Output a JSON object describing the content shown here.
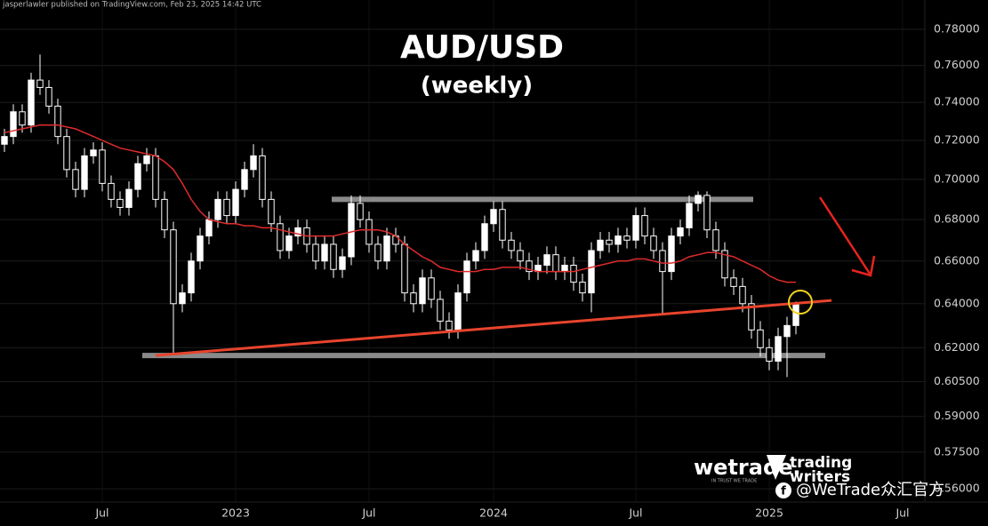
{
  "chart_data": {
    "type": "candlestick",
    "header": "jasperlawler published on TradingView.com, Feb 23, 2025 14:42 UTC",
    "title": "AUD/USD",
    "subtitle": "(weekly)",
    "watermarks": [
      "wetrade.",
      "IN TRUST WE TRADE",
      "trading",
      "writers",
      "@WeTrade众汇官方"
    ],
    "log_scale": true,
    "grid": true,
    "up_color": "#ffffff",
    "down_color": "#000000",
    "wick_color": "#ffffff",
    "ylim": [
      0.5547,
      0.7967
    ],
    "yticks": [
      {
        "value": 0.78,
        "label": "0.78000"
      },
      {
        "value": 0.76,
        "label": "0.76000"
      },
      {
        "value": 0.74,
        "label": "0.74000"
      },
      {
        "value": 0.72,
        "label": "0.72000"
      },
      {
        "value": 0.7,
        "label": "0.70000"
      },
      {
        "value": 0.68,
        "label": "0.68000"
      },
      {
        "value": 0.66,
        "label": "0.66000"
      },
      {
        "value": 0.64,
        "label": "0.64000"
      },
      {
        "value": 0.62,
        "label": "0.62000"
      },
      {
        "value": 0.605,
        "label": "0.60500"
      },
      {
        "value": 0.59,
        "label": "0.59000"
      },
      {
        "value": 0.575,
        "label": "0.57500"
      },
      {
        "value": 0.56,
        "label": "0.56000"
      }
    ],
    "categories": [
      null,
      null,
      null,
      null,
      null,
      null,
      null,
      null,
      null,
      null,
      null,
      "Jul",
      null,
      null,
      null,
      null,
      null,
      null,
      null,
      null,
      null,
      null,
      null,
      null,
      null,
      null,
      "2023",
      null,
      null,
      null,
      null,
      null,
      null,
      null,
      null,
      null,
      null,
      null,
      null,
      null,
      null,
      "Jul",
      null,
      null,
      null,
      null,
      null,
      null,
      null,
      null,
      null,
      null,
      null,
      null,
      null,
      "2024",
      null,
      null,
      null,
      null,
      null,
      null,
      null,
      null,
      null,
      null,
      null,
      null,
      null,
      null,
      null,
      "Jul",
      null,
      null,
      null,
      null,
      null,
      null,
      null,
      null,
      null,
      null,
      null,
      null,
      null,
      null,
      "2025",
      null,
      null,
      null,
      null,
      null,
      null,
      null,
      null,
      null,
      null,
      null,
      null,
      null,
      null,
      "Jul",
      null,
      null
    ],
    "open": [
      0.718,
      0.722,
      0.735,
      0.728,
      0.752,
      0.748,
      0.738,
      0.722,
      0.705,
      0.695,
      0.712,
      0.715,
      0.698,
      0.69,
      0.686,
      0.695,
      0.708,
      0.712,
      0.69,
      0.675,
      0.64,
      0.645,
      0.66,
      0.672,
      0.68,
      0.69,
      0.682,
      0.695,
      0.705,
      0.712,
      0.69,
      0.678,
      0.665,
      0.672,
      0.676,
      0.668,
      0.66,
      0.668,
      0.656,
      0.662,
      0.688,
      0.68,
      0.668,
      0.66,
      0.672,
      0.668,
      0.645,
      0.64,
      0.652,
      0.642,
      0.632,
      0.628,
      0.645,
      0.66,
      0.665,
      0.678,
      0.685,
      0.67,
      0.665,
      0.66,
      0.655,
      0.658,
      0.663,
      0.655,
      0.658,
      0.65,
      0.645,
      0.665,
      0.67,
      0.668,
      0.672,
      0.67,
      0.682,
      0.672,
      0.665,
      0.655,
      0.672,
      0.676,
      0.688,
      0.692,
      0.675,
      0.665,
      0.652,
      0.648,
      0.64,
      0.628,
      0.62,
      0.614,
      0.625,
      0.63,
      null,
      null,
      null,
      null,
      null,
      null,
      null,
      null,
      null,
      null,
      null,
      null,
      null,
      null
    ],
    "high": [
      0.726,
      0.739,
      0.739,
      0.756,
      0.766,
      0.752,
      0.742,
      0.726,
      0.709,
      0.716,
      0.719,
      0.719,
      0.702,
      0.694,
      0.699,
      0.712,
      0.716,
      0.716,
      0.694,
      0.679,
      0.649,
      0.664,
      0.676,
      0.684,
      0.694,
      0.694,
      0.699,
      0.709,
      0.718,
      0.716,
      0.694,
      0.682,
      0.676,
      0.68,
      0.68,
      0.672,
      0.672,
      0.672,
      0.666,
      0.692,
      0.692,
      0.684,
      0.672,
      0.676,
      0.676,
      0.672,
      0.649,
      0.656,
      0.656,
      0.646,
      0.636,
      0.649,
      0.664,
      0.669,
      0.682,
      0.689,
      0.689,
      0.674,
      0.669,
      0.664,
      0.662,
      0.667,
      0.667,
      0.662,
      0.662,
      0.654,
      0.669,
      0.674,
      0.674,
      0.676,
      0.676,
      0.686,
      0.686,
      0.676,
      0.669,
      0.676,
      0.68,
      0.692,
      0.694,
      0.694,
      0.679,
      0.669,
      0.656,
      0.652,
      0.644,
      0.632,
      0.624,
      0.629,
      0.634,
      0.641,
      null,
      null,
      null,
      null,
      null,
      null,
      null,
      null,
      null,
      null,
      null,
      null,
      null,
      null
    ],
    "low": [
      0.714,
      0.718,
      0.724,
      0.724,
      0.744,
      0.734,
      0.718,
      0.701,
      0.691,
      0.691,
      0.708,
      0.694,
      0.686,
      0.682,
      0.682,
      0.691,
      0.704,
      0.686,
      0.671,
      0.617,
      0.636,
      0.641,
      0.656,
      0.668,
      0.676,
      0.678,
      0.678,
      0.691,
      0.701,
      0.686,
      0.674,
      0.661,
      0.661,
      0.668,
      0.664,
      0.656,
      0.656,
      0.652,
      0.652,
      0.658,
      0.676,
      0.664,
      0.656,
      0.656,
      0.664,
      0.641,
      0.636,
      0.636,
      0.638,
      0.628,
      0.624,
      0.624,
      0.641,
      0.656,
      0.661,
      0.674,
      0.666,
      0.661,
      0.656,
      0.651,
      0.651,
      0.654,
      0.651,
      0.651,
      0.646,
      0.641,
      0.636,
      0.661,
      0.664,
      0.664,
      0.666,
      0.666,
      0.668,
      0.661,
      0.635,
      0.651,
      0.668,
      0.672,
      0.684,
      0.671,
      0.661,
      0.648,
      0.644,
      0.636,
      0.624,
      0.616,
      0.61,
      0.61,
      0.607,
      0.626,
      null,
      null,
      null,
      null,
      null,
      null,
      null,
      null,
      null,
      null,
      null,
      null,
      null,
      null
    ],
    "close": [
      0.722,
      0.735,
      0.728,
      0.752,
      0.748,
      0.738,
      0.722,
      0.705,
      0.695,
      0.712,
      0.715,
      0.698,
      0.69,
      0.686,
      0.695,
      0.708,
      0.712,
      0.69,
      0.675,
      0.64,
      0.645,
      0.66,
      0.672,
      0.68,
      0.69,
      0.682,
      0.695,
      0.705,
      0.712,
      0.69,
      0.678,
      0.665,
      0.672,
      0.676,
      0.668,
      0.66,
      0.668,
      0.656,
      0.662,
      0.688,
      0.68,
      0.668,
      0.66,
      0.672,
      0.668,
      0.645,
      0.64,
      0.652,
      0.642,
      0.632,
      0.628,
      0.645,
      0.66,
      0.665,
      0.678,
      0.685,
      0.67,
      0.665,
      0.66,
      0.655,
      0.658,
      0.663,
      0.655,
      0.658,
      0.65,
      0.645,
      0.665,
      0.67,
      0.668,
      0.672,
      0.67,
      0.682,
      0.672,
      0.665,
      0.655,
      0.672,
      0.676,
      0.688,
      0.692,
      0.675,
      0.665,
      0.652,
      0.648,
      0.64,
      0.628,
      0.62,
      0.614,
      0.625,
      0.63,
      0.64,
      null,
      null,
      null,
      null,
      null,
      null,
      null,
      null,
      null,
      null,
      null,
      null,
      null,
      null
    ],
    "ma": {
      "color": "#e02b2b",
      "values": [
        0.724,
        0.725,
        0.726,
        0.727,
        0.728,
        0.728,
        0.728,
        0.727,
        0.726,
        0.724,
        0.722,
        0.72,
        0.718,
        0.716,
        0.715,
        0.714,
        0.713,
        0.712,
        0.709,
        0.705,
        0.698,
        0.69,
        0.684,
        0.68,
        0.679,
        0.678,
        0.678,
        0.677,
        0.677,
        0.676,
        0.676,
        0.675,
        0.674,
        0.673,
        0.672,
        0.672,
        0.672,
        0.672,
        0.673,
        0.674,
        0.675,
        0.675,
        0.675,
        0.674,
        0.672,
        0.668,
        0.665,
        0.662,
        0.66,
        0.657,
        0.656,
        0.655,
        0.655,
        0.655,
        0.656,
        0.656,
        0.657,
        0.657,
        0.657,
        0.656,
        0.655,
        0.655,
        0.655,
        0.655,
        0.655,
        0.656,
        0.657,
        0.658,
        0.659,
        0.66,
        0.66,
        0.661,
        0.661,
        0.66,
        0.659,
        0.659,
        0.66,
        0.662,
        0.663,
        0.664,
        0.664,
        0.663,
        0.662,
        0.66,
        0.658,
        0.656,
        0.653,
        0.651,
        0.65,
        0.65,
        null,
        null,
        null,
        null,
        null,
        null,
        null,
        null,
        null,
        null,
        null,
        null,
        null,
        null
      ]
    },
    "levels": [
      {
        "value": 0.69,
        "from": 36.8,
        "to": 84.2,
        "color": "#8a8a8a"
      },
      {
        "value": 0.6165,
        "from": 15.5,
        "to": 92.3,
        "color": "#8a8a8a"
      }
    ],
    "trendline": {
      "from": [
        17,
        0.6165
      ],
      "to": [
        93,
        0.6415
      ],
      "color": "#e8442c"
    }
  }
}
